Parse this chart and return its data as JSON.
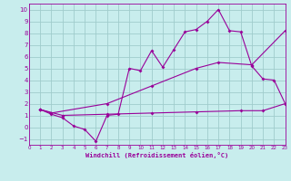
{
  "xlabel": "Windchill (Refroidissement éolien,°C)",
  "bg_color": "#c8eded",
  "grid_color": "#a0cccc",
  "line_color": "#990099",
  "xlim": [
    0,
    23
  ],
  "ylim": [
    -1.5,
    10.5
  ],
  "xticks": [
    0,
    1,
    2,
    3,
    4,
    5,
    6,
    7,
    8,
    9,
    10,
    11,
    12,
    13,
    14,
    15,
    16,
    17,
    18,
    19,
    20,
    21,
    22,
    23
  ],
  "yticks": [
    -1,
    0,
    1,
    2,
    3,
    4,
    5,
    6,
    7,
    8,
    9,
    10
  ],
  "line1_x": [
    1,
    2,
    3,
    4,
    5,
    6,
    7,
    8,
    9,
    10,
    11,
    12,
    13,
    14,
    15,
    16,
    17,
    18,
    19,
    20,
    21,
    22,
    23
  ],
  "line1_y": [
    1.5,
    1.1,
    0.8,
    0.1,
    -0.2,
    -1.2,
    1.0,
    1.1,
    5.0,
    4.8,
    6.5,
    5.1,
    6.6,
    8.1,
    8.3,
    9.0,
    10.0,
    8.2,
    8.1,
    5.2,
    4.1,
    4.0,
    2.0
  ],
  "line2_x": [
    1,
    2,
    7,
    11,
    15,
    17,
    20,
    23
  ],
  "line2_y": [
    1.5,
    1.2,
    2.0,
    3.5,
    5.0,
    5.5,
    5.3,
    8.2
  ],
  "line3_x": [
    1,
    3,
    7,
    11,
    15,
    19,
    21,
    23
  ],
  "line3_y": [
    1.5,
    1.0,
    1.1,
    1.2,
    1.3,
    1.4,
    1.4,
    2.0
  ]
}
